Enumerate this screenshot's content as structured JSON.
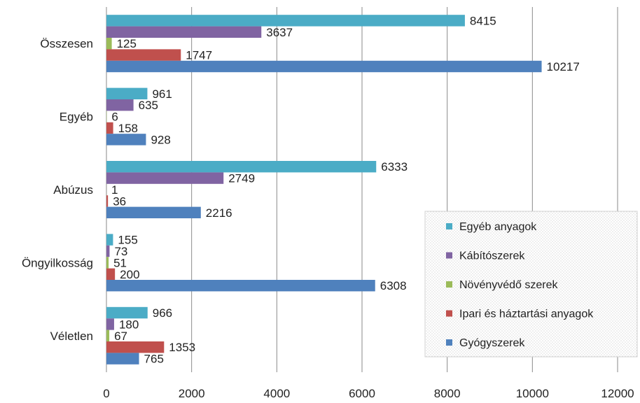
{
  "chart_data": {
    "type": "bar",
    "orientation": "horizontal",
    "categories": [
      "Összesen",
      "Egyéb",
      "Abúzus",
      "Öngyilkosság",
      "Véletlen"
    ],
    "series": [
      {
        "name": "Egyéb anyagok",
        "color": "#4bacc6",
        "values": [
          8415,
          961,
          6333,
          155,
          966
        ]
      },
      {
        "name": "Kábítószerek",
        "color": "#8064a2",
        "values": [
          3637,
          635,
          2749,
          73,
          180
        ]
      },
      {
        "name": "Növényvédő szerek",
        "color": "#9bbb59",
        "values": [
          125,
          6,
          1,
          51,
          67
        ]
      },
      {
        "name": "Ipari és háztartási anyagok",
        "color": "#c0504d",
        "values": [
          1747,
          158,
          36,
          200,
          1353
        ]
      },
      {
        "name": "Gyógyszerek",
        "color": "#4f81bd",
        "values": [
          10217,
          928,
          2216,
          6308,
          765
        ]
      }
    ],
    "x_ticks": [
      "0",
      "2000",
      "4000",
      "6000",
      "8000",
      "10000",
      "12000"
    ],
    "xlim": [
      0,
      12000
    ],
    "grid": "vertical",
    "legend_position": "bottom-right",
    "title": "",
    "xlabel": "",
    "ylabel": ""
  }
}
